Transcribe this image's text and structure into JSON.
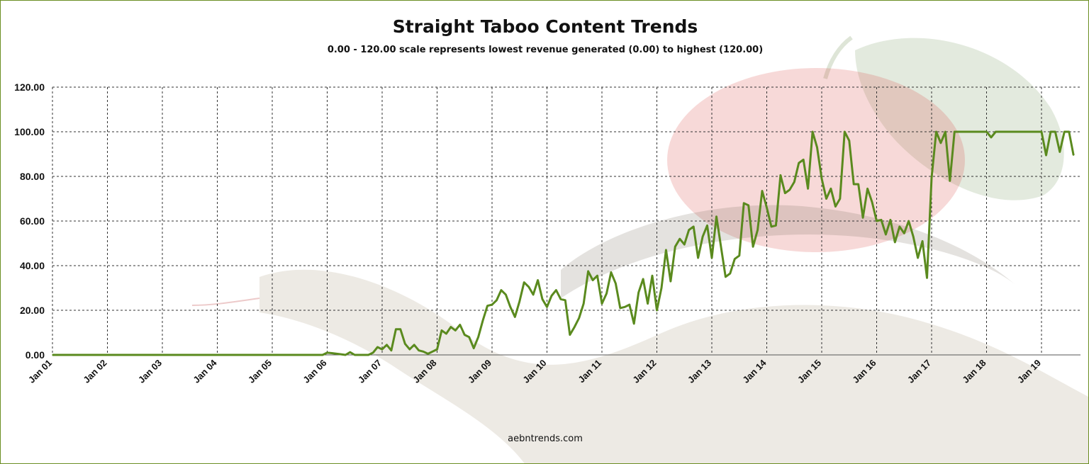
{
  "title": "Straight Taboo Content Trends",
  "subtitle": "0.00 - 120.00 scale represents lowest revenue generated (0.00) to highest (120.00)",
  "footer": "aebntrends.com",
  "chart_data": {
    "type": "line",
    "title": "Straight Taboo Content Trends",
    "subtitle": "0.00 - 120.00 scale represents lowest revenue generated (0.00) to highest (120.00)",
    "ylim": [
      0,
      120
    ],
    "y_ticks": [
      "0.00",
      "20.00",
      "40.00",
      "60.00",
      "80.00",
      "100.00",
      "120.00"
    ],
    "x_ticks": [
      "Jan 01",
      "Jan 02",
      "Jan 03",
      "Jan 04",
      "Jan 05",
      "Jan 06",
      "Jan 07",
      "Jan 08",
      "Jan 09",
      "Jan 10",
      "Jan 11",
      "Jan 12",
      "Jan 13",
      "Jan 14",
      "Jan 15",
      "Jan 16",
      "Jan 17",
      "Jan 18",
      "Jan 19"
    ],
    "xlim": [
      "2001-01",
      "2019-06"
    ],
    "grid": true,
    "line_color": "#5a8a1e",
    "points": [
      [
        "2001-01",
        0
      ],
      [
        "2005-12",
        0
      ],
      [
        "2006-01",
        1.0
      ],
      [
        "2006-02",
        0.8
      ],
      [
        "2006-04",
        0.3
      ],
      [
        "2006-05",
        0
      ],
      [
        "2006-06",
        1.2
      ],
      [
        "2006-07",
        0
      ],
      [
        "2006-10",
        0
      ],
      [
        "2006-11",
        1.0
      ],
      [
        "2006-12",
        3.5
      ],
      [
        "2007-01",
        2.5
      ],
      [
        "2007-02",
        4.5
      ],
      [
        "2007-03",
        2.0
      ],
      [
        "2007-04",
        11.5
      ],
      [
        "2007-05",
        11.5
      ],
      [
        "2007-06",
        5.0
      ],
      [
        "2007-07",
        2.5
      ],
      [
        "2007-08",
        4.5
      ],
      [
        "2007-09",
        2.0
      ],
      [
        "2007-10",
        1.5
      ],
      [
        "2007-11",
        0.5
      ],
      [
        "2007-12",
        1.5
      ],
      [
        "2008-01",
        2.5
      ],
      [
        "2008-02",
        11.0
      ],
      [
        "2008-03",
        9.5
      ],
      [
        "2008-04",
        12.5
      ],
      [
        "2008-05",
        11.0
      ],
      [
        "2008-06",
        13.5
      ],
      [
        "2008-07",
        9.0
      ],
      [
        "2008-08",
        8.0
      ],
      [
        "2008-09",
        3.0
      ],
      [
        "2008-10",
        8.0
      ],
      [
        "2008-11",
        15.5
      ],
      [
        "2008-12",
        22.0
      ],
      [
        "2009-01",
        22.5
      ],
      [
        "2009-02",
        24.5
      ],
      [
        "2009-03",
        29.0
      ],
      [
        "2009-04",
        27.0
      ],
      [
        "2009-05",
        21.5
      ],
      [
        "2009-06",
        17.0
      ],
      [
        "2009-07",
        24.0
      ],
      [
        "2009-08",
        32.5
      ],
      [
        "2009-09",
        30.5
      ],
      [
        "2009-10",
        27.0
      ],
      [
        "2009-11",
        33.5
      ],
      [
        "2009-12",
        25.0
      ],
      [
        "2010-01",
        21.5
      ],
      [
        "2010-02",
        26.5
      ],
      [
        "2010-03",
        29.0
      ],
      [
        "2010-04",
        25.0
      ],
      [
        "2010-05",
        24.5
      ],
      [
        "2010-06",
        9.0
      ],
      [
        "2010-07",
        12.5
      ],
      [
        "2010-08",
        16.5
      ],
      [
        "2010-09",
        23.0
      ],
      [
        "2010-10",
        37.5
      ],
      [
        "2010-11",
        33.5
      ],
      [
        "2010-12",
        35.5
      ],
      [
        "2011-01",
        23.0
      ],
      [
        "2011-02",
        27.5
      ],
      [
        "2011-03",
        37.0
      ],
      [
        "2011-04",
        32.0
      ],
      [
        "2011-05",
        21.0
      ],
      [
        "2011-06",
        21.5
      ],
      [
        "2011-07",
        22.5
      ],
      [
        "2011-08",
        14.0
      ],
      [
        "2011-09",
        28.0
      ],
      [
        "2011-10",
        34.0
      ],
      [
        "2011-11",
        23.0
      ],
      [
        "2011-12",
        35.5
      ],
      [
        "2012-01",
        20.0
      ],
      [
        "2012-02",
        30.0
      ],
      [
        "2012-03",
        47.0
      ],
      [
        "2012-04",
        33.0
      ],
      [
        "2012-05",
        48.5
      ],
      [
        "2012-06",
        52.0
      ],
      [
        "2012-07",
        49.5
      ],
      [
        "2012-08",
        56.0
      ],
      [
        "2012-09",
        57.5
      ],
      [
        "2012-10",
        43.5
      ],
      [
        "2012-11",
        53.0
      ],
      [
        "2012-12",
        58.0
      ],
      [
        "2013-01",
        43.5
      ],
      [
        "2013-02",
        62.0
      ],
      [
        "2013-03",
        48.5
      ],
      [
        "2013-04",
        35.0
      ],
      [
        "2013-05",
        36.5
      ],
      [
        "2013-06",
        43.0
      ],
      [
        "2013-07",
        44.5
      ],
      [
        "2013-08",
        68.0
      ],
      [
        "2013-09",
        67.0
      ],
      [
        "2013-10",
        48.5
      ],
      [
        "2013-11",
        56.0
      ],
      [
        "2013-12",
        73.5
      ],
      [
        "2014-01",
        66.0
      ],
      [
        "2014-02",
        57.5
      ],
      [
        "2014-03",
        58.0
      ],
      [
        "2014-04",
        80.5
      ],
      [
        "2014-05",
        72.5
      ],
      [
        "2014-06",
        74.0
      ],
      [
        "2014-07",
        77.5
      ],
      [
        "2014-08",
        86.0
      ],
      [
        "2014-09",
        87.5
      ],
      [
        "2014-10",
        74.5
      ],
      [
        "2014-11",
        100.0
      ],
      [
        "2014-12",
        93.0
      ],
      [
        "2015-01",
        79.0
      ],
      [
        "2015-02",
        70.0
      ],
      [
        "2015-03",
        74.5
      ],
      [
        "2015-04",
        66.5
      ],
      [
        "2015-05",
        70.0
      ],
      [
        "2015-06",
        100.0
      ],
      [
        "2015-07",
        96.0
      ],
      [
        "2015-08",
        76.5
      ],
      [
        "2015-09",
        76.5
      ],
      [
        "2015-10",
        61.5
      ],
      [
        "2015-11",
        74.5
      ],
      [
        "2015-12",
        68.5
      ],
      [
        "2016-01",
        60.0
      ],
      [
        "2016-02",
        60.5
      ],
      [
        "2016-03",
        54.0
      ],
      [
        "2016-04",
        60.5
      ],
      [
        "2016-05",
        50.5
      ],
      [
        "2016-06",
        57.5
      ],
      [
        "2016-07",
        54.5
      ],
      [
        "2016-08",
        60.0
      ],
      [
        "2016-09",
        53.0
      ],
      [
        "2016-10",
        43.5
      ],
      [
        "2016-11",
        51.0
      ],
      [
        "2016-12",
        34.5
      ],
      [
        "2017-01",
        79.5
      ],
      [
        "2017-02",
        100.0
      ],
      [
        "2017-03",
        95.0
      ],
      [
        "2017-04",
        100.0
      ],
      [
        "2017-05",
        78.0
      ],
      [
        "2017-06",
        100.0
      ],
      [
        "2017-07",
        100.0
      ],
      [
        "2018-01",
        100.0
      ],
      [
        "2018-02",
        97.5
      ],
      [
        "2018-03",
        100.0
      ],
      [
        "2019-01",
        100.0
      ],
      [
        "2019-02",
        89.5
      ],
      [
        "2019-03",
        100.0
      ],
      [
        "2019-04",
        100.0
      ],
      [
        "2019-05",
        91.0
      ],
      [
        "2019-06",
        100.0
      ],
      [
        "2019-07",
        100.0
      ],
      [
        "2019-08",
        89.5
      ]
    ]
  }
}
